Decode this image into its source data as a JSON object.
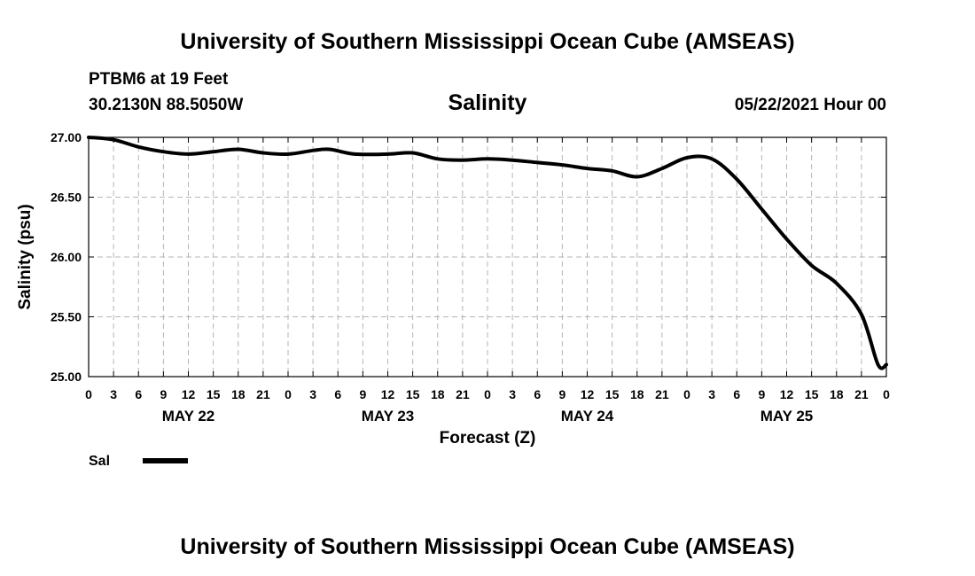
{
  "header": {
    "title_top": "University of Southern Mississippi Ocean Cube (AMSEAS)",
    "title_bottom": "University of Southern Mississippi Ocean Cube (AMSEAS)",
    "station": "PTBM6 at 19 Feet",
    "coords": "30.2130N  88.5050W",
    "datetime": "05/22/2021 Hour 00"
  },
  "chart_data": {
    "type": "line",
    "title": "Salinity",
    "xlabel": "Forecast (Z)",
    "ylabel": "Salinity (psu)",
    "ylim": [
      25.0,
      27.0
    ],
    "xlim": [
      0,
      96
    ],
    "y_ticks": [
      "27.00",
      "26.50",
      "26.00",
      "25.50",
      "25.00"
    ],
    "y_tick_values": [
      27.0,
      26.5,
      26.0,
      25.5,
      25.0
    ],
    "x_ticks": [
      0,
      3,
      6,
      9,
      12,
      15,
      18,
      21,
      24,
      27,
      30,
      33,
      36,
      39,
      42,
      45,
      48,
      51,
      54,
      57,
      60,
      63,
      66,
      69,
      72,
      75,
      78,
      81,
      84,
      87,
      90,
      93,
      96
    ],
    "x_tick_labels": [
      "0",
      "3",
      "6",
      "9",
      "12",
      "15",
      "18",
      "21",
      "0",
      "3",
      "6",
      "9",
      "12",
      "15",
      "18",
      "21",
      "0",
      "3",
      "6",
      "9",
      "12",
      "15",
      "18",
      "21",
      "0",
      "3",
      "6",
      "9",
      "12",
      "15",
      "18",
      "21",
      "0"
    ],
    "day_labels": [
      {
        "label": "MAY 22",
        "x": 12
      },
      {
        "label": "MAY 23",
        "x": 36
      },
      {
        "label": "MAY 24",
        "x": 60
      },
      {
        "label": "MAY 25",
        "x": 84
      }
    ],
    "grid": true,
    "series": [
      {
        "name": "Sal",
        "x": [
          0,
          3,
          6,
          9,
          12,
          15,
          18,
          21,
          24,
          27,
          29,
          32,
          36,
          39,
          42,
          45,
          48,
          51,
          54,
          57,
          60,
          63,
          66,
          69,
          72,
          75,
          78,
          81,
          84,
          87,
          90,
          93,
          95,
          96
        ],
        "y": [
          27.0,
          26.98,
          26.92,
          26.88,
          26.86,
          26.88,
          26.9,
          26.87,
          26.86,
          26.89,
          26.9,
          26.86,
          26.86,
          26.87,
          26.82,
          26.81,
          26.82,
          26.81,
          26.79,
          26.77,
          26.74,
          26.72,
          26.67,
          26.74,
          26.83,
          26.82,
          26.65,
          26.4,
          26.15,
          25.93,
          25.78,
          25.52,
          25.1,
          25.1
        ]
      }
    ],
    "legend": {
      "label": "Sal",
      "placement": "bottom-left"
    }
  }
}
